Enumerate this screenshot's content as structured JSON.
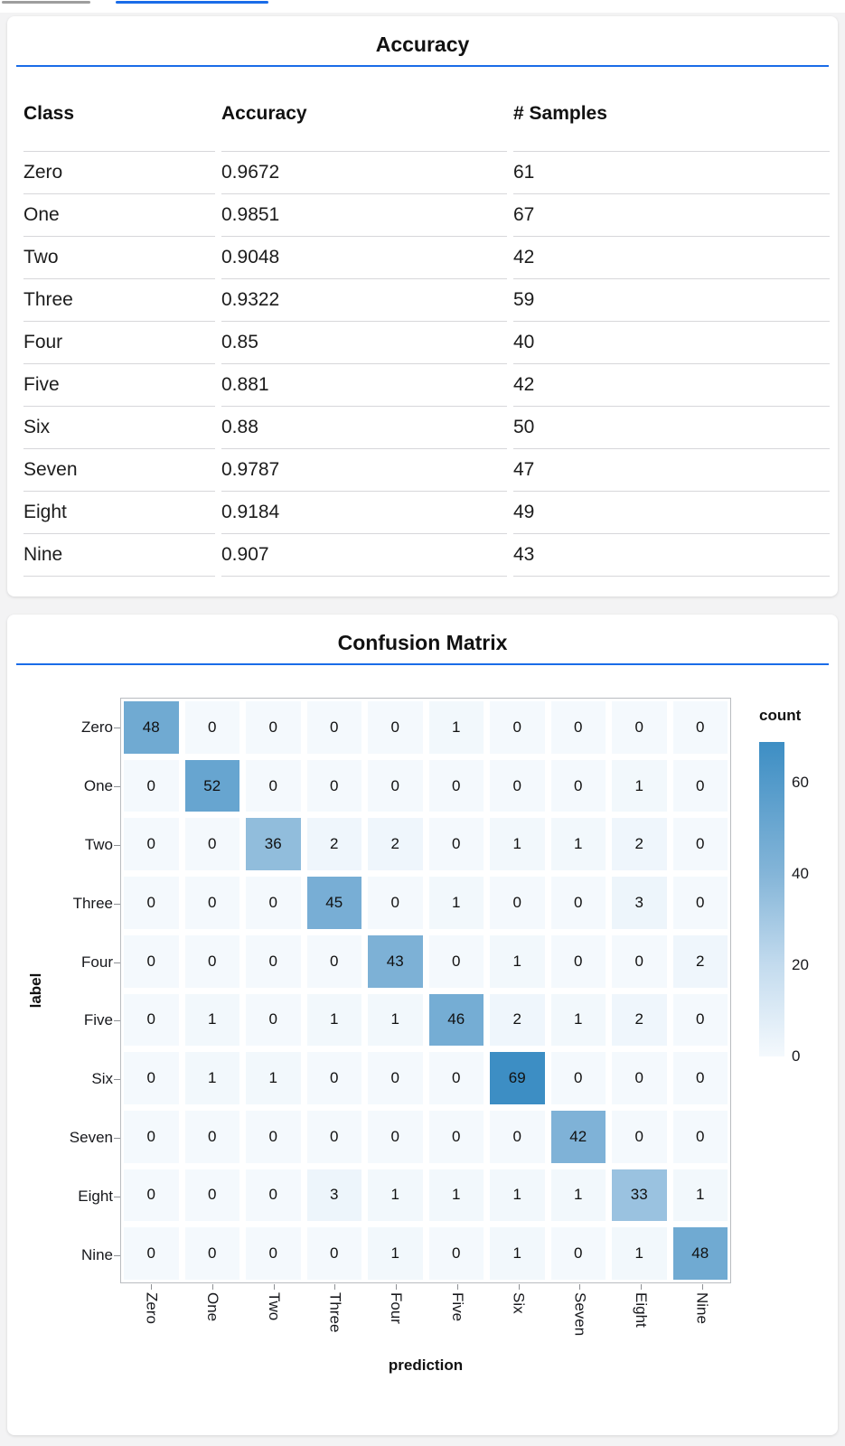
{
  "accent": {
    "divider_color": "#1a6ce8",
    "active_tab_color": "#1a6ce8",
    "inactive_tab_color": "#9e9e9e"
  },
  "tab_bar": {
    "indicators": [
      {
        "id": "inactive-tab",
        "state": "inactive"
      },
      {
        "id": "active-tab",
        "state": "active"
      }
    ]
  },
  "accuracy_card": {
    "title": "Accuracy",
    "table": {
      "columns": [
        "Class",
        "Accuracy",
        "# Samples"
      ],
      "rows": [
        [
          "Zero",
          "0.9672",
          "61"
        ],
        [
          "One",
          "0.9851",
          "67"
        ],
        [
          "Two",
          "0.9048",
          "42"
        ],
        [
          "Three",
          "0.9322",
          "59"
        ],
        [
          "Four",
          "0.85",
          "40"
        ],
        [
          "Five",
          "0.881",
          "42"
        ],
        [
          "Six",
          "0.88",
          "50"
        ],
        [
          "Seven",
          "0.9787",
          "47"
        ],
        [
          "Eight",
          "0.9184",
          "49"
        ],
        [
          "Nine",
          "0.907",
          "43"
        ]
      ]
    }
  },
  "confusion_card": {
    "title": "Confusion Matrix"
  },
  "chart_data": {
    "type": "heatmap",
    "title": "Confusion Matrix",
    "xlabel": "prediction",
    "ylabel": "label",
    "x_categories": [
      "Zero",
      "One",
      "Two",
      "Three",
      "Four",
      "Five",
      "Six",
      "Seven",
      "Eight",
      "Nine"
    ],
    "y_categories": [
      "Zero",
      "One",
      "Two",
      "Three",
      "Four",
      "Five",
      "Six",
      "Seven",
      "Eight",
      "Nine"
    ],
    "matrix": [
      [
        48,
        0,
        0,
        0,
        0,
        1,
        0,
        0,
        0,
        0
      ],
      [
        0,
        52,
        0,
        0,
        0,
        0,
        0,
        0,
        1,
        0
      ],
      [
        0,
        0,
        36,
        2,
        2,
        0,
        1,
        1,
        2,
        0
      ],
      [
        0,
        0,
        0,
        45,
        0,
        1,
        0,
        0,
        3,
        0
      ],
      [
        0,
        0,
        0,
        0,
        43,
        0,
        1,
        0,
        0,
        2
      ],
      [
        0,
        1,
        0,
        1,
        1,
        46,
        2,
        1,
        2,
        0
      ],
      [
        0,
        1,
        1,
        0,
        0,
        0,
        69,
        0,
        0,
        0
      ],
      [
        0,
        0,
        0,
        0,
        0,
        0,
        0,
        42,
        0,
        0
      ],
      [
        0,
        0,
        0,
        3,
        1,
        1,
        1,
        1,
        33,
        1
      ],
      [
        0,
        0,
        0,
        0,
        1,
        0,
        1,
        0,
        1,
        48
      ]
    ],
    "legend": {
      "title": "count",
      "ticks": [
        60,
        40,
        20,
        0
      ],
      "domain": [
        0,
        69
      ],
      "position": "right"
    },
    "color_scale": {
      "scheme": "blues",
      "stops": [
        [
          0,
          "#f4f9fd"
        ],
        [
          20,
          "#c3dbee"
        ],
        [
          40,
          "#84b5d8"
        ],
        [
          69,
          "#3d8ec4"
        ]
      ]
    },
    "grid": false
  }
}
